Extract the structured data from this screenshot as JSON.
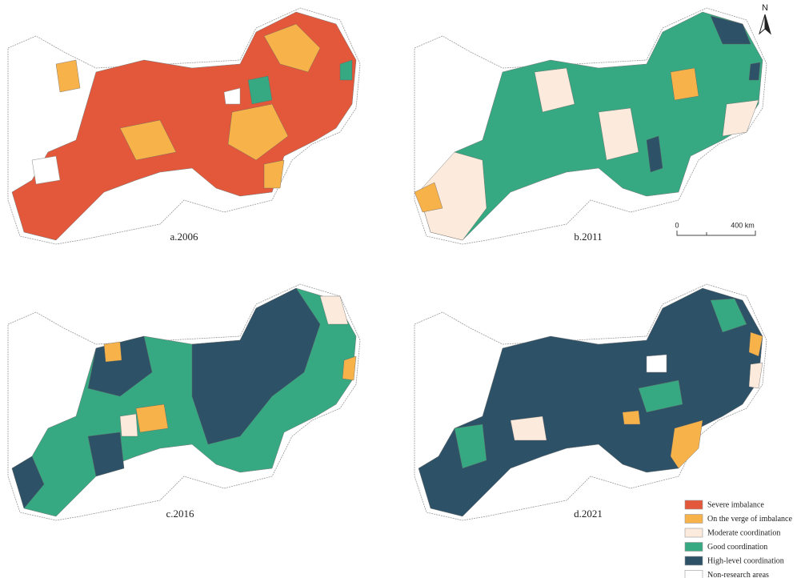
{
  "panels": [
    {
      "label": "a.2006"
    },
    {
      "label": "b.2011"
    },
    {
      "label": "c.2016"
    },
    {
      "label": "d.2021"
    }
  ],
  "north": "N",
  "scale_bar": {
    "start": "0",
    "end": "400 km"
  },
  "legend": [
    {
      "label": "Severe imbalance",
      "color": "#e3573a"
    },
    {
      "label": "On the verge of imbalance",
      "color": "#f7b24a"
    },
    {
      "label": "Moderate coordination",
      "color": "#fcebdc"
    },
    {
      "label": "Good coordination",
      "color": "#36a882"
    },
    {
      "label": "High-level coordination",
      "color": "#2d5166"
    },
    {
      "label": "Non-research areas",
      "color": "#ffffff"
    }
  ]
}
